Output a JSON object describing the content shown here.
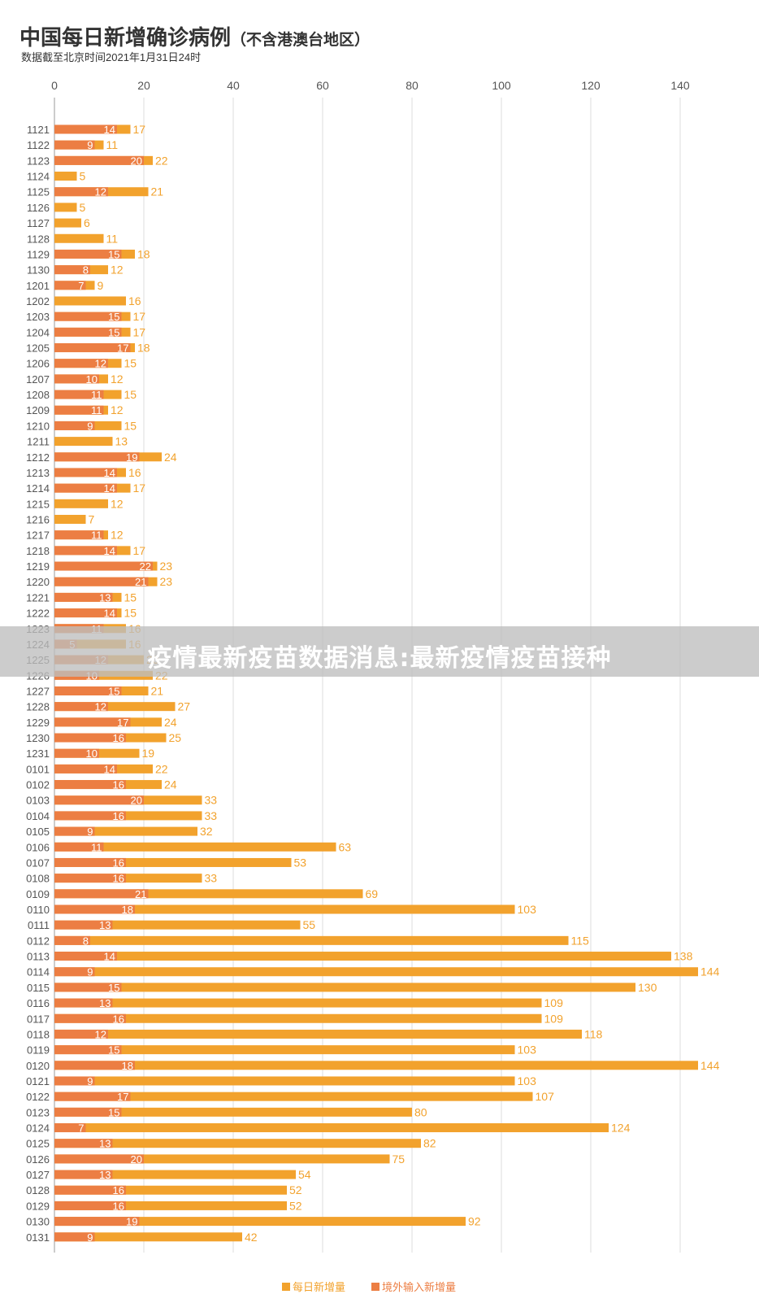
{
  "title": "中国每日新增确诊病例",
  "title_suffix": "（不含港澳台地区）",
  "subtitle": "数据截至北京时间2021年1月31日24时",
  "overlay_text": "疫情最新疫苗数据消息:最新疫情疫苗接种",
  "colors": {
    "total": "#F2A22D",
    "imported": "#EC7E43",
    "grid": "#DDDDDD",
    "axis": "#999999",
    "text": "#555555"
  },
  "chart_data": {
    "type": "bar",
    "orientation": "horizontal",
    "stacked_overlay": true,
    "title": "中国每日新增确诊病例（不含港澳台地区）",
    "xlim": [
      0,
      145
    ],
    "xticks": [
      0,
      20,
      40,
      60,
      80,
      100,
      120,
      140
    ],
    "grid": true,
    "legend_position": "bottom-center",
    "categories": [
      "1121",
      "1122",
      "1123",
      "1124",
      "1125",
      "1126",
      "1127",
      "1128",
      "1129",
      "1130",
      "1201",
      "1202",
      "1203",
      "1204",
      "1205",
      "1206",
      "1207",
      "1208",
      "1209",
      "1210",
      "1211",
      "1212",
      "1213",
      "1214",
      "1215",
      "1216",
      "1217",
      "1218",
      "1219",
      "1220",
      "1221",
      "1222",
      "1223",
      "1224",
      "1225",
      "1226",
      "1227",
      "1228",
      "1229",
      "1230",
      "1231",
      "0101",
      "0102",
      "0103",
      "0104",
      "0105",
      "0106",
      "0107",
      "0108",
      "0109",
      "0110",
      "0111",
      "0112",
      "0113",
      "0114",
      "0115",
      "0116",
      "0117",
      "0118",
      "0119",
      "0120",
      "0121",
      "0122",
      "0123",
      "0124",
      "0125",
      "0126",
      "0127",
      "0128",
      "0129",
      "0130",
      "0131"
    ],
    "series": [
      {
        "name": "每日新增量",
        "color": "#F2A22D",
        "values": [
          17,
          11,
          22,
          5,
          21,
          5,
          6,
          11,
          18,
          12,
          9,
          16,
          17,
          17,
          18,
          15,
          12,
          15,
          12,
          15,
          13,
          24,
          16,
          17,
          12,
          7,
          12,
          17,
          23,
          23,
          15,
          15,
          16,
          16,
          20,
          22,
          21,
          27,
          24,
          25,
          19,
          22,
          24,
          33,
          33,
          32,
          63,
          53,
          33,
          69,
          103,
          55,
          115,
          138,
          144,
          130,
          109,
          109,
          118,
          103,
          144,
          103,
          107,
          80,
          124,
          82,
          75,
          54,
          52,
          52,
          92,
          42
        ]
      },
      {
        "name": "境外输入新增量",
        "color": "#EC7E43",
        "values": [
          14,
          9,
          20,
          null,
          12,
          null,
          null,
          null,
          15,
          8,
          7,
          null,
          15,
          15,
          17,
          12,
          10,
          11,
          11,
          9,
          null,
          19,
          14,
          14,
          null,
          null,
          11,
          14,
          22,
          21,
          13,
          14,
          11,
          5,
          12,
          10,
          15,
          12,
          17,
          16,
          10,
          14,
          16,
          20,
          16,
          9,
          11,
          16,
          16,
          21,
          18,
          13,
          8,
          14,
          9,
          15,
          13,
          16,
          12,
          15,
          18,
          9,
          17,
          15,
          7,
          13,
          20,
          13,
          16,
          16,
          19,
          9
        ]
      }
    ]
  }
}
